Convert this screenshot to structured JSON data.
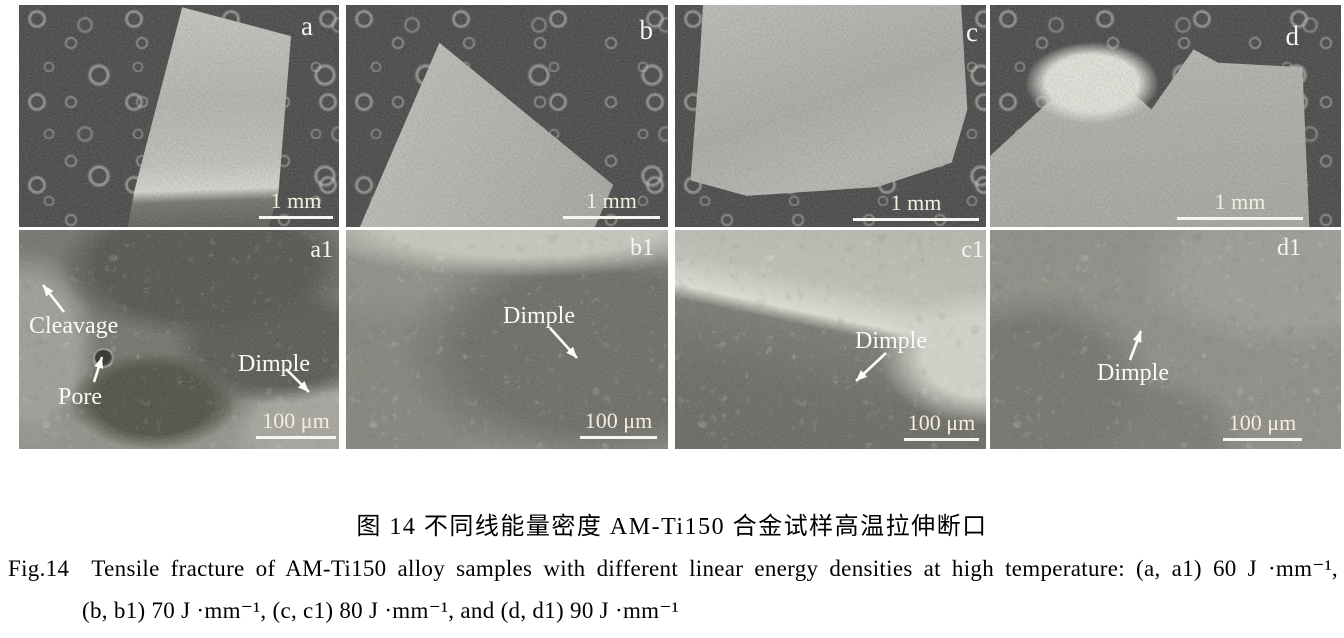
{
  "figure_number_zh": "图 14",
  "figure_number_en": "Fig.14",
  "panels": [
    {
      "label": "a",
      "scale": "1 mm"
    },
    {
      "label": "b",
      "scale": "1 mm"
    },
    {
      "label": "c",
      "scale": "1 mm"
    },
    {
      "label": "d",
      "scale": "1 mm"
    },
    {
      "label": "a1",
      "scale": "100 μm",
      "annotations": [
        "Cleavage",
        "Pore",
        "Dimple"
      ]
    },
    {
      "label": "b1",
      "scale": "100 μm",
      "annotations": [
        "Dimple"
      ]
    },
    {
      "label": "c1",
      "scale": "100 μm",
      "annotations": [
        "Dimple"
      ]
    },
    {
      "label": "d1",
      "scale": "100 μm",
      "annotations": [
        "Dimple"
      ]
    }
  ],
  "caption": {
    "zh": "图 14  不同线能量密度 AM-Ti150 合金试样高温拉伸断口",
    "en_line1": "Fig.14  Tensile fracture of AM-Ti150 alloy samples with different linear energy densities at high temperature: (a, a1) 60 J ·mm⁻¹,",
    "en_line2": "(b, b1) 70 J ·mm⁻¹, (c, c1) 80 J ·mm⁻¹, and (d, d1) 90 J ·mm⁻¹"
  },
  "colors": {
    "page_background": "#ffffff",
    "sem_dark_background": "#4b4b4b",
    "sem_specimen_light": "#b5b4ae",
    "annotation_text": "#fbfaf4",
    "caption_text": "#000000"
  }
}
